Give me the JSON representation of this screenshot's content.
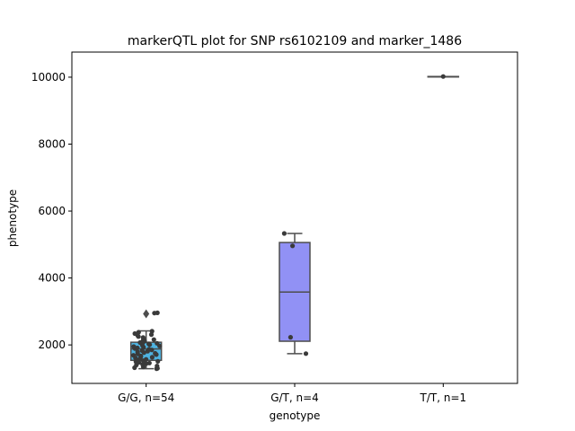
{
  "chart_data": {
    "type": "box",
    "title": "markerQTL plot for SNP rs6102109 and marker_1486",
    "xlabel": "genotype",
    "ylabel": "phenotype",
    "ylim": [
      850,
      10750
    ],
    "yticks": [
      2000,
      4000,
      6000,
      8000,
      10000
    ],
    "grid": false,
    "categories": [
      "G/G, n=54",
      "G/T, n=4",
      "T/T, n=1"
    ],
    "boxes": [
      {
        "category": "G/G, n=54",
        "color": "#4fb3e0",
        "whisker_low": 1290,
        "q1": 1540,
        "median": 1880,
        "q3": 2080,
        "whisker_high": 2420,
        "outliers": [
          2930
        ],
        "points": [
          1290,
          1300,
          1320,
          1340,
          1370,
          1400,
          1420,
          1440,
          1460,
          1480,
          1500,
          1510,
          1530,
          1550,
          1570,
          1590,
          1610,
          1630,
          1650,
          1670,
          1690,
          1710,
          1730,
          1750,
          1770,
          1790,
          1810,
          1830,
          1850,
          1870,
          1890,
          1910,
          1930,
          1950,
          1970,
          1990,
          2010,
          2030,
          2050,
          2070,
          2090,
          2110,
          2130,
          2160,
          2190,
          2220,
          2250,
          2280,
          2310,
          2340,
          2380,
          2410,
          2950,
          2960
        ]
      },
      {
        "category": "G/T, n=4",
        "color": "#9191f5",
        "whisker_low": 1740,
        "q1": 2110,
        "median": 3580,
        "q3": 5060,
        "whisker_high": 5330,
        "outliers": [],
        "points": [
          1740,
          2230,
          4960,
          5330
        ]
      },
      {
        "category": "T/T, n=1",
        "color": "#b38bd6",
        "whisker_low": 10020,
        "q1": 10020,
        "median": 10020,
        "q3": 10020,
        "whisker_high": 10020,
        "outliers": [],
        "points": [
          10020
        ]
      }
    ]
  }
}
